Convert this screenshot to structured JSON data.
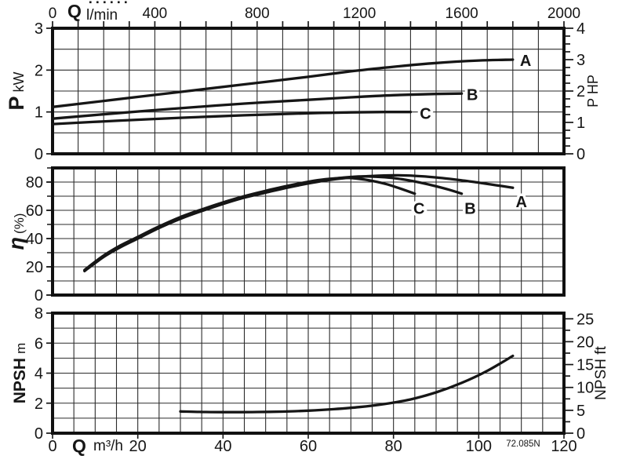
{
  "figure": {
    "ink": "#161616",
    "grid_color": "#2b2b2b",
    "background": "#ffffff",
    "watermark": "72.085N"
  },
  "top_axis": {
    "label_prefix": "Q",
    "label_unit": "l/min",
    "ticks": [
      0,
      400,
      800,
      1200,
      1600,
      2000
    ],
    "minor_step": 100,
    "max": 2000
  },
  "bottom_axis": {
    "label_prefix": "Q",
    "label_unit": "m³/h",
    "ticks": [
      0,
      20,
      40,
      60,
      80,
      100,
      120
    ],
    "major_step": 20,
    "max": 120
  },
  "chart_data": [
    {
      "id": "power",
      "type": "line",
      "ylabel": {
        "bold": "P",
        "unit": "kW"
      },
      "y2label": {
        "text": "P HP"
      },
      "ylim": [
        0,
        3
      ],
      "yticks": [
        0,
        1,
        2,
        3
      ],
      "ygrid_step": 0.5,
      "y2lim": [
        0,
        4
      ],
      "y2ticks": [
        0,
        1,
        2,
        3,
        4
      ],
      "y2minor_step": 0.25,
      "xgrid_columns": 20,
      "series": [
        {
          "name": "A",
          "points": [
            [
              0,
              1.12
            ],
            [
              15,
              1.3
            ],
            [
              30,
              1.48
            ],
            [
              45,
              1.66
            ],
            [
              60,
              1.84
            ],
            [
              70,
              1.97
            ],
            [
              80,
              2.08
            ],
            [
              90,
              2.17
            ],
            [
              100,
              2.23
            ],
            [
              108,
              2.25
            ]
          ]
        },
        {
          "name": "B",
          "points": [
            [
              0,
              0.84
            ],
            [
              15,
              0.97
            ],
            [
              30,
              1.09
            ],
            [
              45,
              1.2
            ],
            [
              60,
              1.29
            ],
            [
              70,
              1.35
            ],
            [
              80,
              1.4
            ],
            [
              90,
              1.43
            ],
            [
              96,
              1.44
            ]
          ]
        },
        {
          "name": "C",
          "points": [
            [
              0,
              0.71
            ],
            [
              15,
              0.79
            ],
            [
              30,
              0.86
            ],
            [
              45,
              0.92
            ],
            [
              60,
              0.97
            ],
            [
              70,
              0.99
            ],
            [
              78,
              1.0
            ],
            [
              84,
              1.0
            ]
          ]
        }
      ],
      "labels": [
        {
          "text": "A",
          "x": 111.0,
          "y": 2.23
        },
        {
          "text": "B",
          "x": 98.5,
          "y": 1.42
        },
        {
          "text": "C",
          "x": 87.5,
          "y": 0.97
        }
      ]
    },
    {
      "id": "efficiency",
      "type": "line",
      "ylabel": {
        "bold": "η",
        "unit": "(%)"
      },
      "ylim": [
        0,
        90
      ],
      "yticks": [
        0,
        20,
        40,
        60,
        80
      ],
      "ygrid_step": 10,
      "yminor_step": 10,
      "xgrid_columns": 24,
      "series": [
        {
          "name": "A",
          "points": [
            [
              7.5,
              17
            ],
            [
              12,
              27
            ],
            [
              16,
              34
            ],
            [
              20,
              40
            ],
            [
              25,
              47.5
            ],
            [
              30,
              54
            ],
            [
              35,
              59.5
            ],
            [
              40,
              64.5
            ],
            [
              45,
              69
            ],
            [
              50,
              72.5
            ],
            [
              55,
              76
            ],
            [
              60,
              79
            ],
            [
              65,
              81.5
            ],
            [
              70,
              83.2
            ],
            [
              75,
              84.3
            ],
            [
              80,
              84.8
            ],
            [
              85,
              84.4
            ],
            [
              90,
              83.3
            ],
            [
              95,
              81.6
            ],
            [
              100,
              79.6
            ],
            [
              104,
              77.8
            ],
            [
              108,
              76
            ]
          ]
        },
        {
          "name": "B",
          "points": [
            [
              7.5,
              17.4
            ],
            [
              12,
              27.5
            ],
            [
              16,
              34.6
            ],
            [
              20,
              40.6
            ],
            [
              25,
              48
            ],
            [
              30,
              54.6
            ],
            [
              35,
              60
            ],
            [
              40,
              65
            ],
            [
              45,
              69.5
            ],
            [
              50,
              73.2
            ],
            [
              55,
              76.6
            ],
            [
              60,
              79.6
            ],
            [
              65,
              82
            ],
            [
              70,
              83.6
            ],
            [
              74,
              84
            ],
            [
              78,
              83.4
            ],
            [
              82,
              82
            ],
            [
              86,
              79.8
            ],
            [
              90,
              77
            ],
            [
              93,
              74.6
            ],
            [
              96,
              71.8
            ]
          ]
        },
        {
          "name": "C",
          "points": [
            [
              7.5,
              17.8
            ],
            [
              12,
              28
            ],
            [
              16,
              35.2
            ],
            [
              20,
              41.2
            ],
            [
              25,
              48.6
            ],
            [
              30,
              55.2
            ],
            [
              35,
              60.6
            ],
            [
              40,
              65.6
            ],
            [
              45,
              70
            ],
            [
              50,
              73.8
            ],
            [
              55,
              77.2
            ],
            [
              60,
              80.2
            ],
            [
              64,
              82
            ],
            [
              68,
              83
            ],
            [
              71,
              82.6
            ],
            [
              74,
              81.4
            ],
            [
              78,
              78.8
            ],
            [
              81,
              76
            ],
            [
              85,
              71.8
            ]
          ]
        }
      ],
      "labels": [
        {
          "text": "C",
          "x": 86,
          "y": 61.5
        },
        {
          "text": "B",
          "x": 98,
          "y": 61.5
        },
        {
          "text": "A",
          "x": 110,
          "y": 66
        }
      ]
    },
    {
      "id": "npsh",
      "type": "line",
      "ylabel": {
        "bold": "NPSH",
        "unit": "m"
      },
      "y2label": {
        "text": "NPSH ft"
      },
      "ylim": [
        0,
        8
      ],
      "yticks": [
        0,
        2,
        4,
        6,
        8
      ],
      "ygrid_step": 1,
      "y2ticks_ft": [
        0,
        5,
        10,
        15,
        20,
        25
      ],
      "y2minor_step_ft": 2.5,
      "ft_per_m": 3.28084,
      "xgrid_columns": 24,
      "series": [
        {
          "name": "NPSH",
          "points": [
            [
              30,
              1.45
            ],
            [
              36,
              1.41
            ],
            [
              42,
              1.4
            ],
            [
              48,
              1.41
            ],
            [
              54,
              1.44
            ],
            [
              60,
              1.5
            ],
            [
              66,
              1.6
            ],
            [
              72,
              1.74
            ],
            [
              78,
              1.95
            ],
            [
              84,
              2.25
            ],
            [
              90,
              2.72
            ],
            [
              96,
              3.35
            ],
            [
              102,
              4.15
            ],
            [
              108,
              5.15
            ]
          ]
        }
      ],
      "labels": []
    }
  ]
}
